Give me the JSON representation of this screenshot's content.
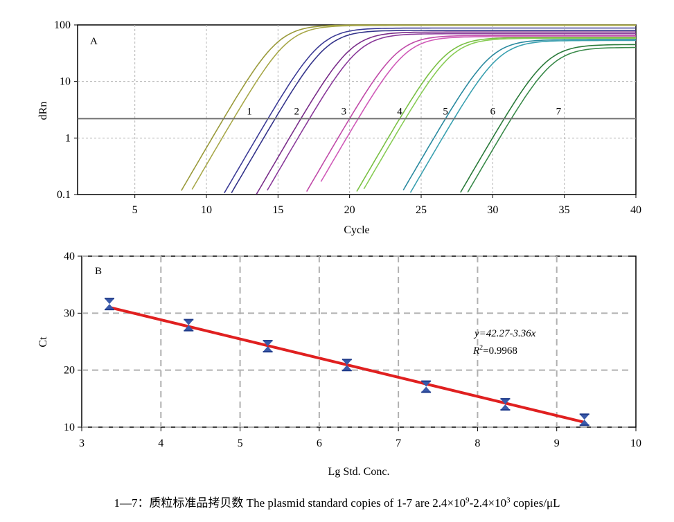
{
  "chart_data": [
    {
      "type": "line",
      "panel_label": "A",
      "xlabel": "Cycle",
      "ylabel": "dRn",
      "xlim": [
        1,
        40
      ],
      "ylim": [
        0.1,
        100
      ],
      "yscale": "log",
      "xticks": [
        "5",
        "10",
        "15",
        "20",
        "25",
        "30",
        "35",
        "40"
      ],
      "yticks": [
        "0.1",
        "1",
        "10",
        "100"
      ],
      "grid": true,
      "threshold": 2.2,
      "curve_labels": [
        {
          "text": "1",
          "x": 13.0,
          "y": 2.6
        },
        {
          "text": "2",
          "x": 16.3,
          "y": 2.6
        },
        {
          "text": "3",
          "x": 19.6,
          "y": 2.6
        },
        {
          "text": "4",
          "x": 23.5,
          "y": 2.6
        },
        {
          "text": "5",
          "x": 26.7,
          "y": 2.6
        },
        {
          "text": "6",
          "x": 30.0,
          "y": 2.6
        },
        {
          "text": "7",
          "x": 34.6,
          "y": 2.6
        }
      ],
      "series": [
        {
          "color": "#9a9a3a",
          "start": 8.0,
          "ct": 11.2,
          "plateau": 100
        },
        {
          "color": "#a8a84a",
          "start": 9.0,
          "ct": 11.9,
          "plateau": 98
        },
        {
          "color": "#3c3c96",
          "start": 11.0,
          "ct": 14.3,
          "plateau": 88
        },
        {
          "color": "#33338a",
          "start": 11.0,
          "ct": 14.8,
          "plateau": 80
        },
        {
          "color": "#7a2e8a",
          "start": 13.0,
          "ct": 16.6,
          "plateau": 75
        },
        {
          "color": "#8a3a9a",
          "start": 14.0,
          "ct": 17.2,
          "plateau": 70
        },
        {
          "color": "#c04aa8",
          "start": 17.0,
          "ct": 20.0,
          "plateau": 65
        },
        {
          "color": "#d05ab8",
          "start": 18.0,
          "ct": 20.6,
          "plateau": 62
        },
        {
          "color": "#7ac044",
          "start": 20.0,
          "ct": 23.5,
          "plateau": 60
        },
        {
          "color": "#88cc55",
          "start": 20.0,
          "ct": 23.9,
          "plateau": 58
        },
        {
          "color": "#2a8aa0",
          "start": 23.0,
          "ct": 26.7,
          "plateau": 55
        },
        {
          "color": "#3aa0b0",
          "start": 24.0,
          "ct": 27.3,
          "plateau": 53
        },
        {
          "color": "#2a7a3a",
          "start": 27.0,
          "ct": 30.8,
          "plateau": 45
        },
        {
          "color": "#3a8a4a",
          "start": 27.0,
          "ct": 31.3,
          "plateau": 40
        }
      ]
    },
    {
      "type": "scatter",
      "panel_label": "B",
      "xlabel": "Lg Std. Conc.",
      "ylabel": "Ct",
      "xlim": [
        3,
        10
      ],
      "ylim": [
        10,
        40
      ],
      "xticks": [
        "3",
        "4",
        "5",
        "6",
        "7",
        "8",
        "9",
        "10"
      ],
      "yticks": [
        "10",
        "20",
        "30",
        "40"
      ],
      "grid": true,
      "x": [
        3.35,
        4.35,
        5.35,
        6.35,
        7.35,
        8.35,
        9.35
      ],
      "y": [
        31.6,
        27.9,
        24.2,
        20.9,
        17.1,
        14.0,
        11.3
      ],
      "fit_line": {
        "slope": -3.36,
        "intercept": 42.27,
        "color": "#e02020"
      },
      "equation": "y=42.27-3.36x",
      "r_squared": "R2=0.9968",
      "marker_color": "#3a5aaa"
    }
  ],
  "caption": {
    "prefix": "1—7：质粒标准品拷贝数 The plasmid standard copies of 1-7 are 2.4×10",
    "exp1": "9",
    "middle": "-2.4×10",
    "exp2": "3",
    "suffix": " copies/μL"
  }
}
